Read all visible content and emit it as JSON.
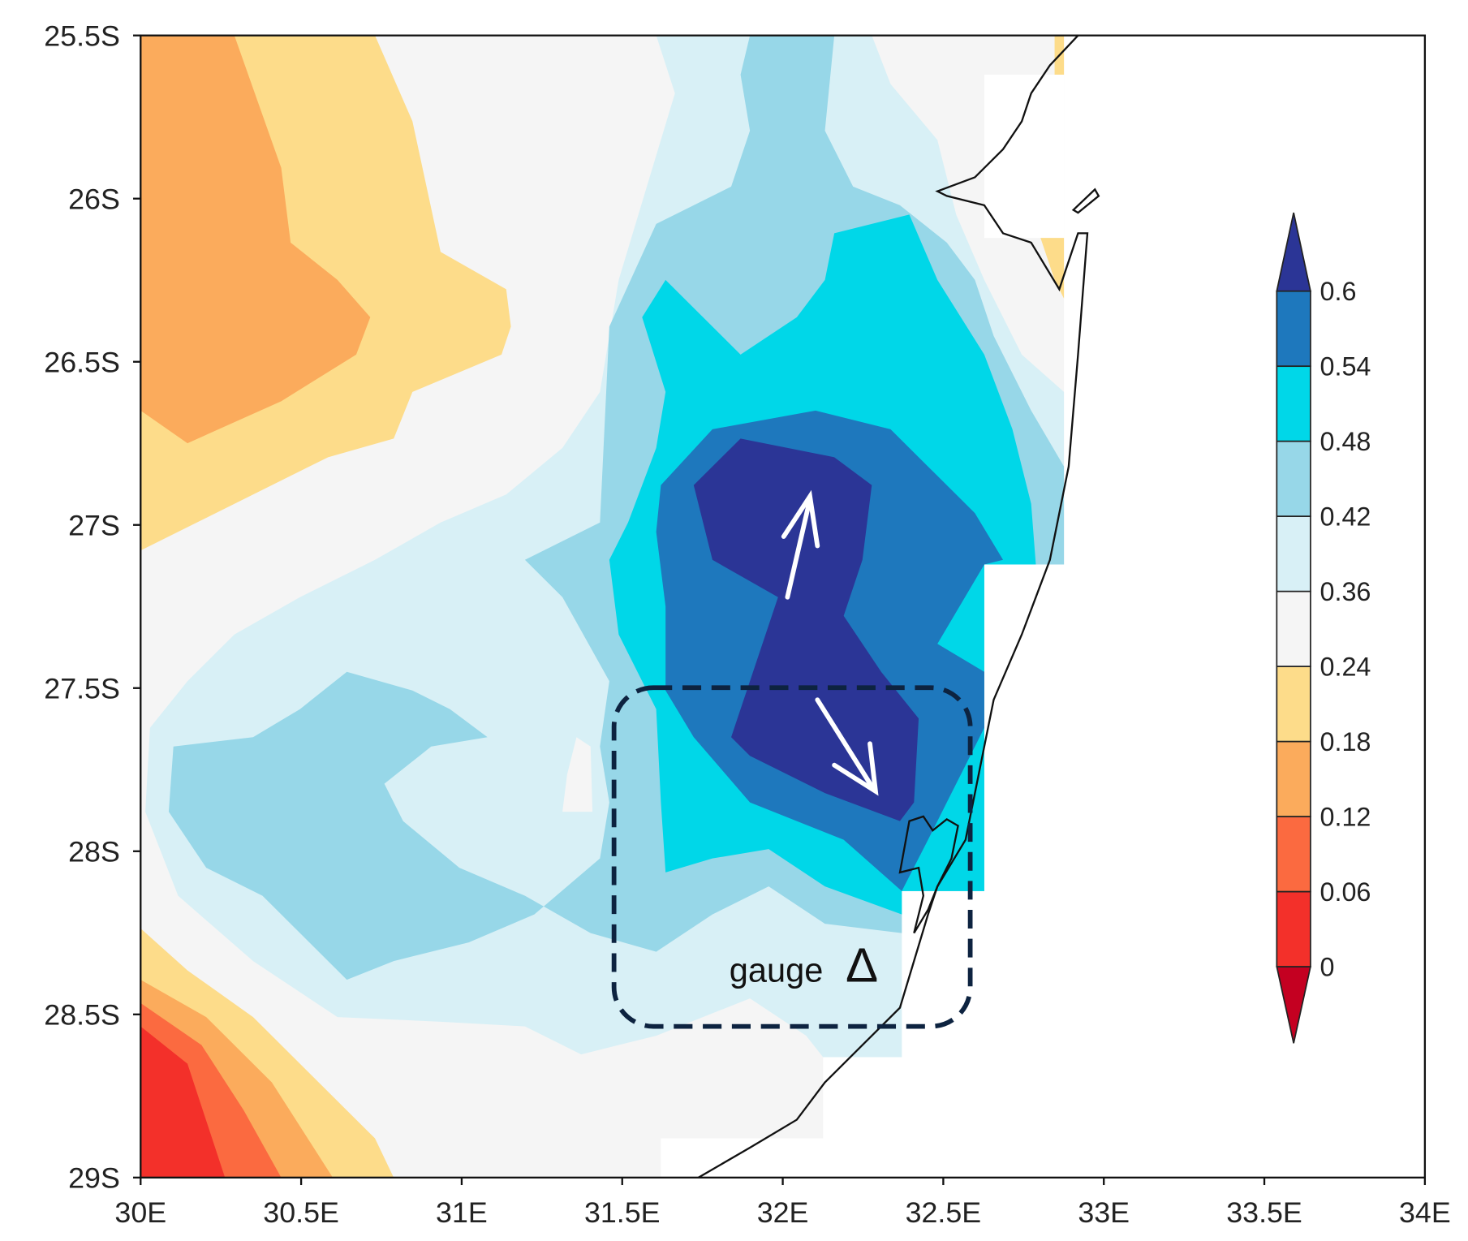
{
  "map": {
    "xticks": [
      {
        "value": 30,
        "label": "30E"
      },
      {
        "value": 30.5,
        "label": "30.5E"
      },
      {
        "value": 31,
        "label": "31E"
      },
      {
        "value": 31.5,
        "label": "31.5E"
      },
      {
        "value": 32,
        "label": "32E"
      },
      {
        "value": 32.5,
        "label": "32.5E"
      },
      {
        "value": 33,
        "label": "33E"
      },
      {
        "value": 33.5,
        "label": "33.5E"
      },
      {
        "value": 34,
        "label": "34E"
      }
    ],
    "yticks": [
      {
        "value": -25.5,
        "label": "25.5S"
      },
      {
        "value": -26,
        "label": "26S"
      },
      {
        "value": -26.5,
        "label": "26.5S"
      },
      {
        "value": -27,
        "label": "27S"
      },
      {
        "value": -27.5,
        "label": "27.5S"
      },
      {
        "value": -28,
        "label": "28S"
      },
      {
        "value": -28.5,
        "label": "28.5S"
      },
      {
        "value": -29,
        "label": "29S"
      }
    ],
    "xlim": [
      30,
      34
    ],
    "ylim": [
      -29,
      -25.5
    ],
    "colorbar": {
      "levels": [
        0,
        0.06,
        0.12,
        0.18,
        0.24,
        0.36,
        0.42,
        0.48,
        0.54,
        0.6
      ],
      "colors": [
        "#c40021",
        "#f3302a",
        "#fb6a40",
        "#fbab5c",
        "#fddc8a",
        "#f5f5f5",
        "#d8f0f6",
        "#97d7e8",
        "#00d7e8",
        "#1e78bd",
        "#2b3596"
      ]
    },
    "annotation": "gauge",
    "marker": "Δ"
  }
}
